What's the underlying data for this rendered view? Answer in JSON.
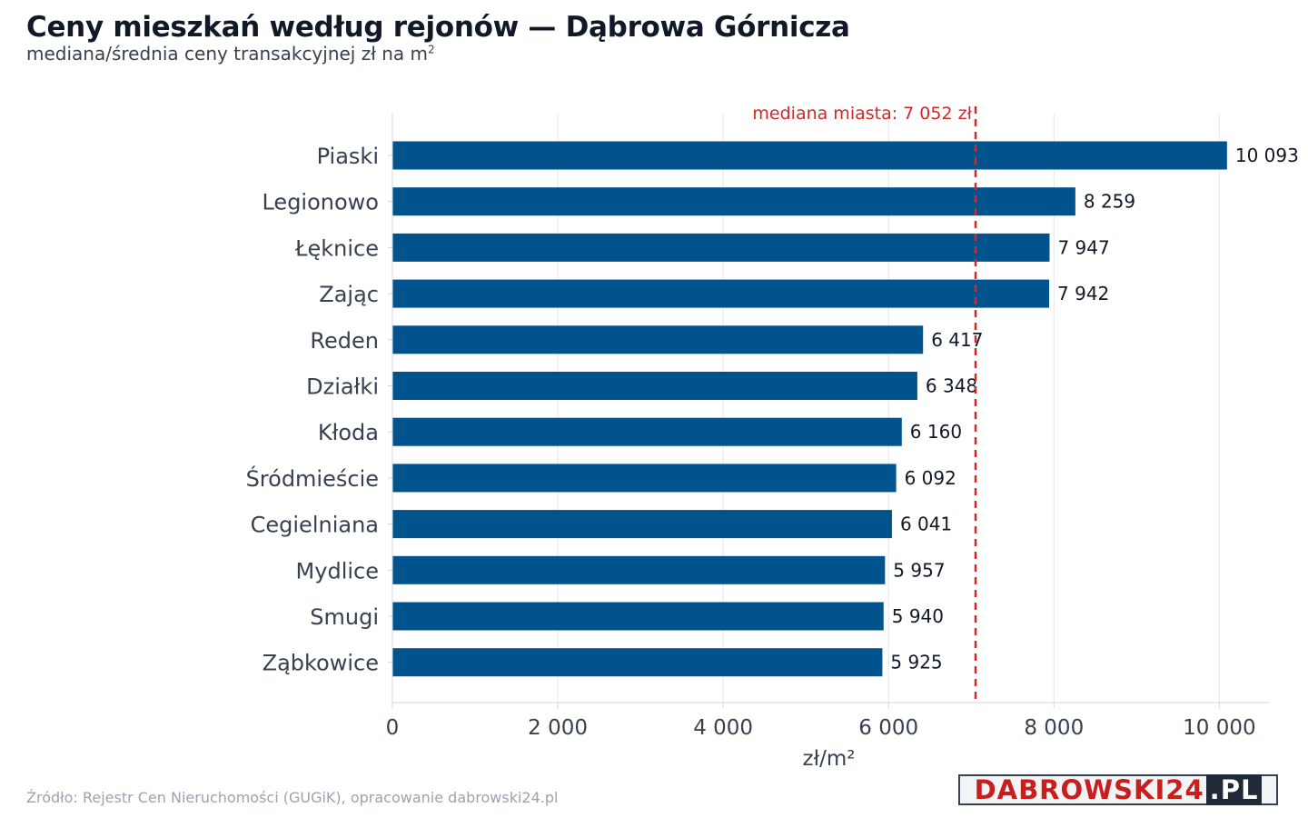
{
  "header": {
    "title": "Ceny mieszkań według rejonów — Dąbrowa Górnicza",
    "subtitle": "mediana/średnia ceny transakcyjnej zł na m",
    "subtitle_sup": "2"
  },
  "footer": {
    "source": "Źródło: Rejestr Cen Nieruchomości (GUGiK), opracowanie dabrowski24.pl"
  },
  "logo": {
    "text": "DABROWSKI24",
    "tld": ".PL"
  },
  "colors": {
    "bar": "#00538c",
    "median_line": "#d62728",
    "grid": "#e5e7eb",
    "axis": "#d1d5db"
  },
  "chart_data": {
    "type": "bar",
    "orientation": "horizontal",
    "categories": [
      "Piaski",
      "Legionowo",
      "Łęknice",
      "Zając",
      "Reden",
      "Działki",
      "Kłoda",
      "Śródmieście",
      "Cegielniana",
      "Mydlice",
      "Smugi",
      "Ząbkowice"
    ],
    "values": [
      10093,
      8259,
      7947,
      7942,
      6417,
      6348,
      6160,
      6092,
      6041,
      5957,
      5940,
      5925
    ],
    "value_labels": [
      "10 093",
      "8 259",
      "7 947",
      "7 942",
      "6 417",
      "6 348",
      "6 160",
      "6 092",
      "6 041",
      "5 957",
      "5 940",
      "5 925"
    ],
    "xlabel": "zł/m²",
    "xlim": [
      0,
      10600
    ],
    "xticks": [
      0,
      2000,
      4000,
      6000,
      8000,
      10000
    ],
    "xtick_labels": [
      "0",
      "2 000",
      "4 000",
      "6 000",
      "8 000",
      "10 000"
    ],
    "grid": "vertical",
    "reference_line": {
      "value": 7052,
      "label": "mediana miasta: 7 052 zł",
      "style": "dashed"
    }
  }
}
